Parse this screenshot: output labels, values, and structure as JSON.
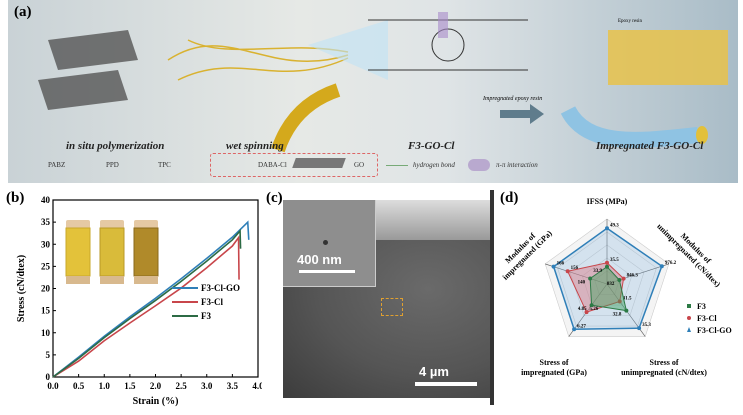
{
  "panels": {
    "a": "(a)",
    "b": "(b)",
    "c": "(c)",
    "d": "(d)"
  },
  "panel_a": {
    "stages": [
      "in situ polymerization",
      "wet spinning",
      "F3-GO-Cl",
      "Impregnated F3-GO-Cl"
    ],
    "arrow_label": "Impregnated epoxy resin",
    "epoxy_label": "Epoxy resin",
    "legend": [
      "PABZ",
      "PPD",
      "TPC",
      "DABA-Cl",
      "GO",
      "hydrogen bond",
      "π-π interaction"
    ]
  },
  "panel_c": {
    "inset_scale": "400 nm",
    "main_scale": "4 µm"
  },
  "chart_data": [
    {
      "type": "line",
      "title": "",
      "xlabel": "Strain (%)",
      "ylabel": "Stress (cN/dtex)",
      "xlim": [
        0,
        4
      ],
      "ylim": [
        0,
        40
      ],
      "xticks": [
        "0.0",
        "0.5",
        "1.0",
        "1.5",
        "2.0",
        "2.5",
        "3.0",
        "3.5",
        "4.0"
      ],
      "yticks": [
        "0",
        "5",
        "10",
        "15",
        "20",
        "25",
        "30",
        "35",
        "40"
      ],
      "legend_position": "bottom-right",
      "series": [
        {
          "name": "F3-Cl-GO",
          "color": "#2f7fb8",
          "x": [
            0,
            0.5,
            1,
            1.5,
            2,
            2.5,
            3,
            3.5,
            3.8,
            3.82
          ],
          "y": [
            0,
            4.5,
            9.2,
            13.6,
            17.8,
            22.2,
            26.8,
            31.6,
            35,
            31
          ]
        },
        {
          "name": "F3-Cl",
          "color": "#c8464b",
          "x": [
            0,
            0.5,
            1,
            1.5,
            2,
            2.5,
            3,
            3.5,
            3.62,
            3.63
          ],
          "y": [
            0,
            3.6,
            8.2,
            12.2,
            16.1,
            20.1,
            24.7,
            29.6,
            31.5,
            22
          ]
        },
        {
          "name": "F3",
          "color": "#2c6b45",
          "x": [
            0,
            0.5,
            1,
            1.5,
            2,
            2.5,
            3,
            3.5,
            3.65,
            3.66
          ],
          "y": [
            0,
            4.2,
            8.9,
            13.2,
            17.3,
            21.6,
            26.2,
            31.0,
            33,
            29
          ]
        }
      ]
    },
    {
      "type": "radar",
      "axes": [
        "IFSS (MPa)",
        "Modulus of unimpregnated (cN/dtex)",
        "Stress of unimpregnated (cN/dtex)",
        "Stress of impregnated (GPa)",
        "Modulus of impregnated (GPa)"
      ],
      "axis_ranges": [
        [
          27,
          53
        ],
        [
          790,
          1000
        ],
        [
          29,
          36.5
        ],
        [
          3.6,
          6.7
        ],
        [
          128,
          172
        ]
      ],
      "legend_position": "right",
      "series": [
        {
          "name": "F3",
          "color": "#2c7a45",
          "marker": "square",
          "values": [
            33.9,
            832,
            32.8,
            4.85,
            140
          ],
          "labels": [
            "33.9",
            "832",
            "32.8",
            "4.85",
            "140"
          ]
        },
        {
          "name": "F3-Cl",
          "color": "#c8464b",
          "marker": "circle",
          "values": [
            35.5,
            846.3,
            31.5,
            5.26,
            156
          ],
          "labels": [
            "35.5",
            "846.3",
            "31.5",
            "5.26",
            "156"
          ]
        },
        {
          "name": "F3-Cl-GO",
          "color": "#2f7fb8",
          "marker": "triangle",
          "values": [
            49.3,
            976.2,
            35.3,
            6.27,
            166
          ],
          "labels": [
            "49.3",
            "976.2",
            "35.3",
            "6.27",
            "166"
          ]
        }
      ]
    }
  ]
}
